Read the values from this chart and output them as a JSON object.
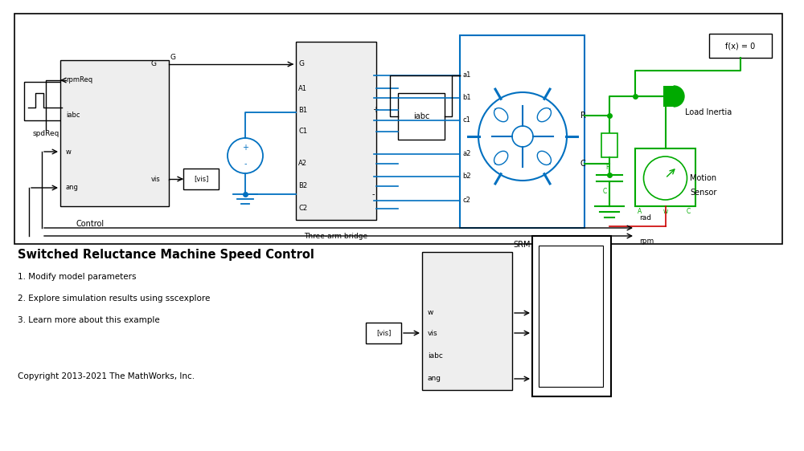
{
  "bg_color": "#ffffff",
  "title": "Switched Reluctance Machine Speed Control",
  "subtitle_lines": [
    "1. Modify model parameters",
    "2. Explore simulation results using sscexplore",
    "3. Learn more about this example"
  ],
  "copyright": "Copyright 2013-2021 The MathWorks, Inc.",
  "block_outline": "#000000",
  "blue_color": "#0070c0",
  "green_color": "#00aa00",
  "light_gray_fill": "#eeeeee"
}
